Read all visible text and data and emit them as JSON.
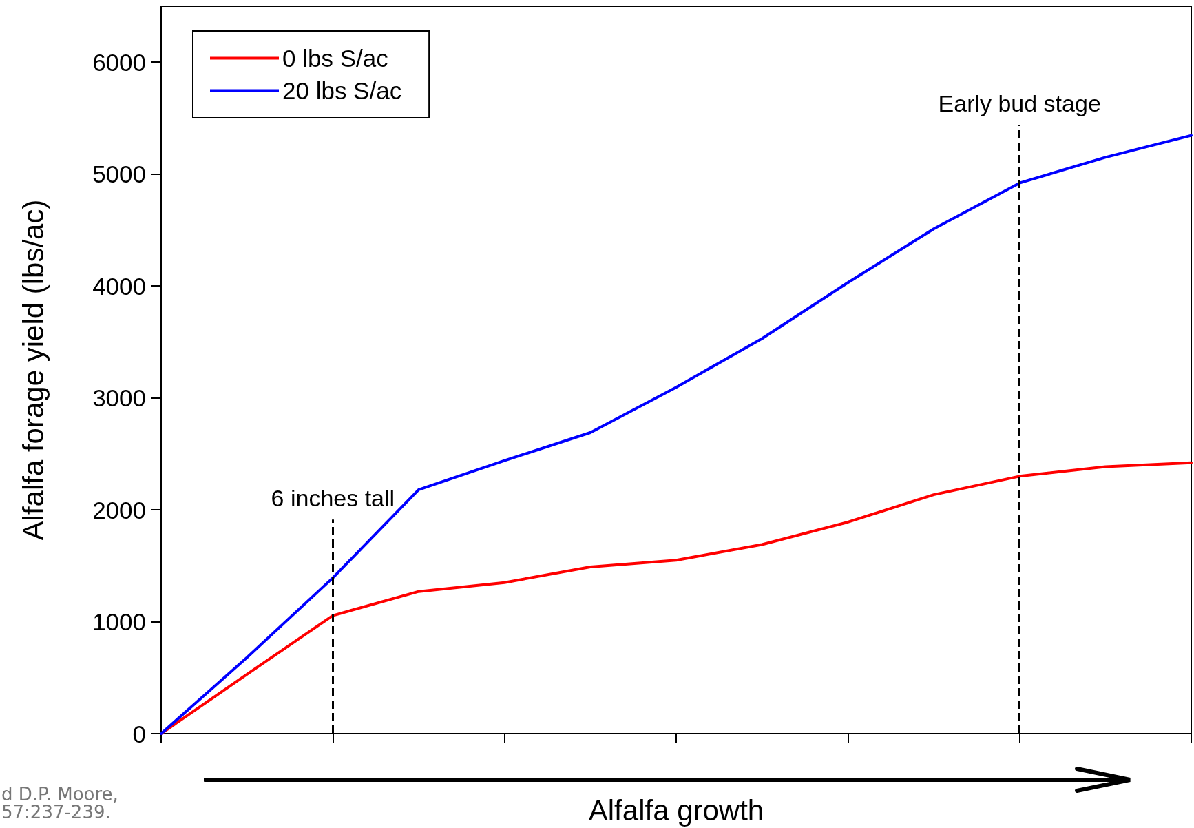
{
  "chart_data": {
    "type": "line",
    "xlabel": "Alfalfa growth",
    "ylabel": "Alfalfa forage yield (lbs/ac)",
    "categories": [
      null,
      null,
      null,
      null,
      null,
      null,
      null,
      null,
      null,
      null,
      null,
      null,
      null
    ],
    "series": [
      {
        "name": "0 lbs S/ac",
        "color": "#ff0000",
        "values": [
          0,
          530,
          1055,
          1270,
          1350,
          1490,
          1550,
          1690,
          1890,
          2135,
          2300,
          2385,
          2420
        ]
      },
      {
        "name": "20 lbs S/ac",
        "color": "#0000ff",
        "values": [
          0,
          680,
          1392,
          2180,
          2440,
          2690,
          3095,
          3530,
          4030,
          4510,
          4920,
          5150,
          5345
        ]
      }
    ],
    "ylim": [
      0,
      6500
    ],
    "yticks": [
      0,
      1000,
      2000,
      3000,
      4000,
      5000,
      6000
    ],
    "tick_labels": "y",
    "grid": false,
    "legend": "top left",
    "marker": "none",
    "line_style": "solid",
    "annotations": [
      "6 inches tall",
      "Early bud stage",
      "d D.P. Moore, 57:237-239."
    ]
  }
}
